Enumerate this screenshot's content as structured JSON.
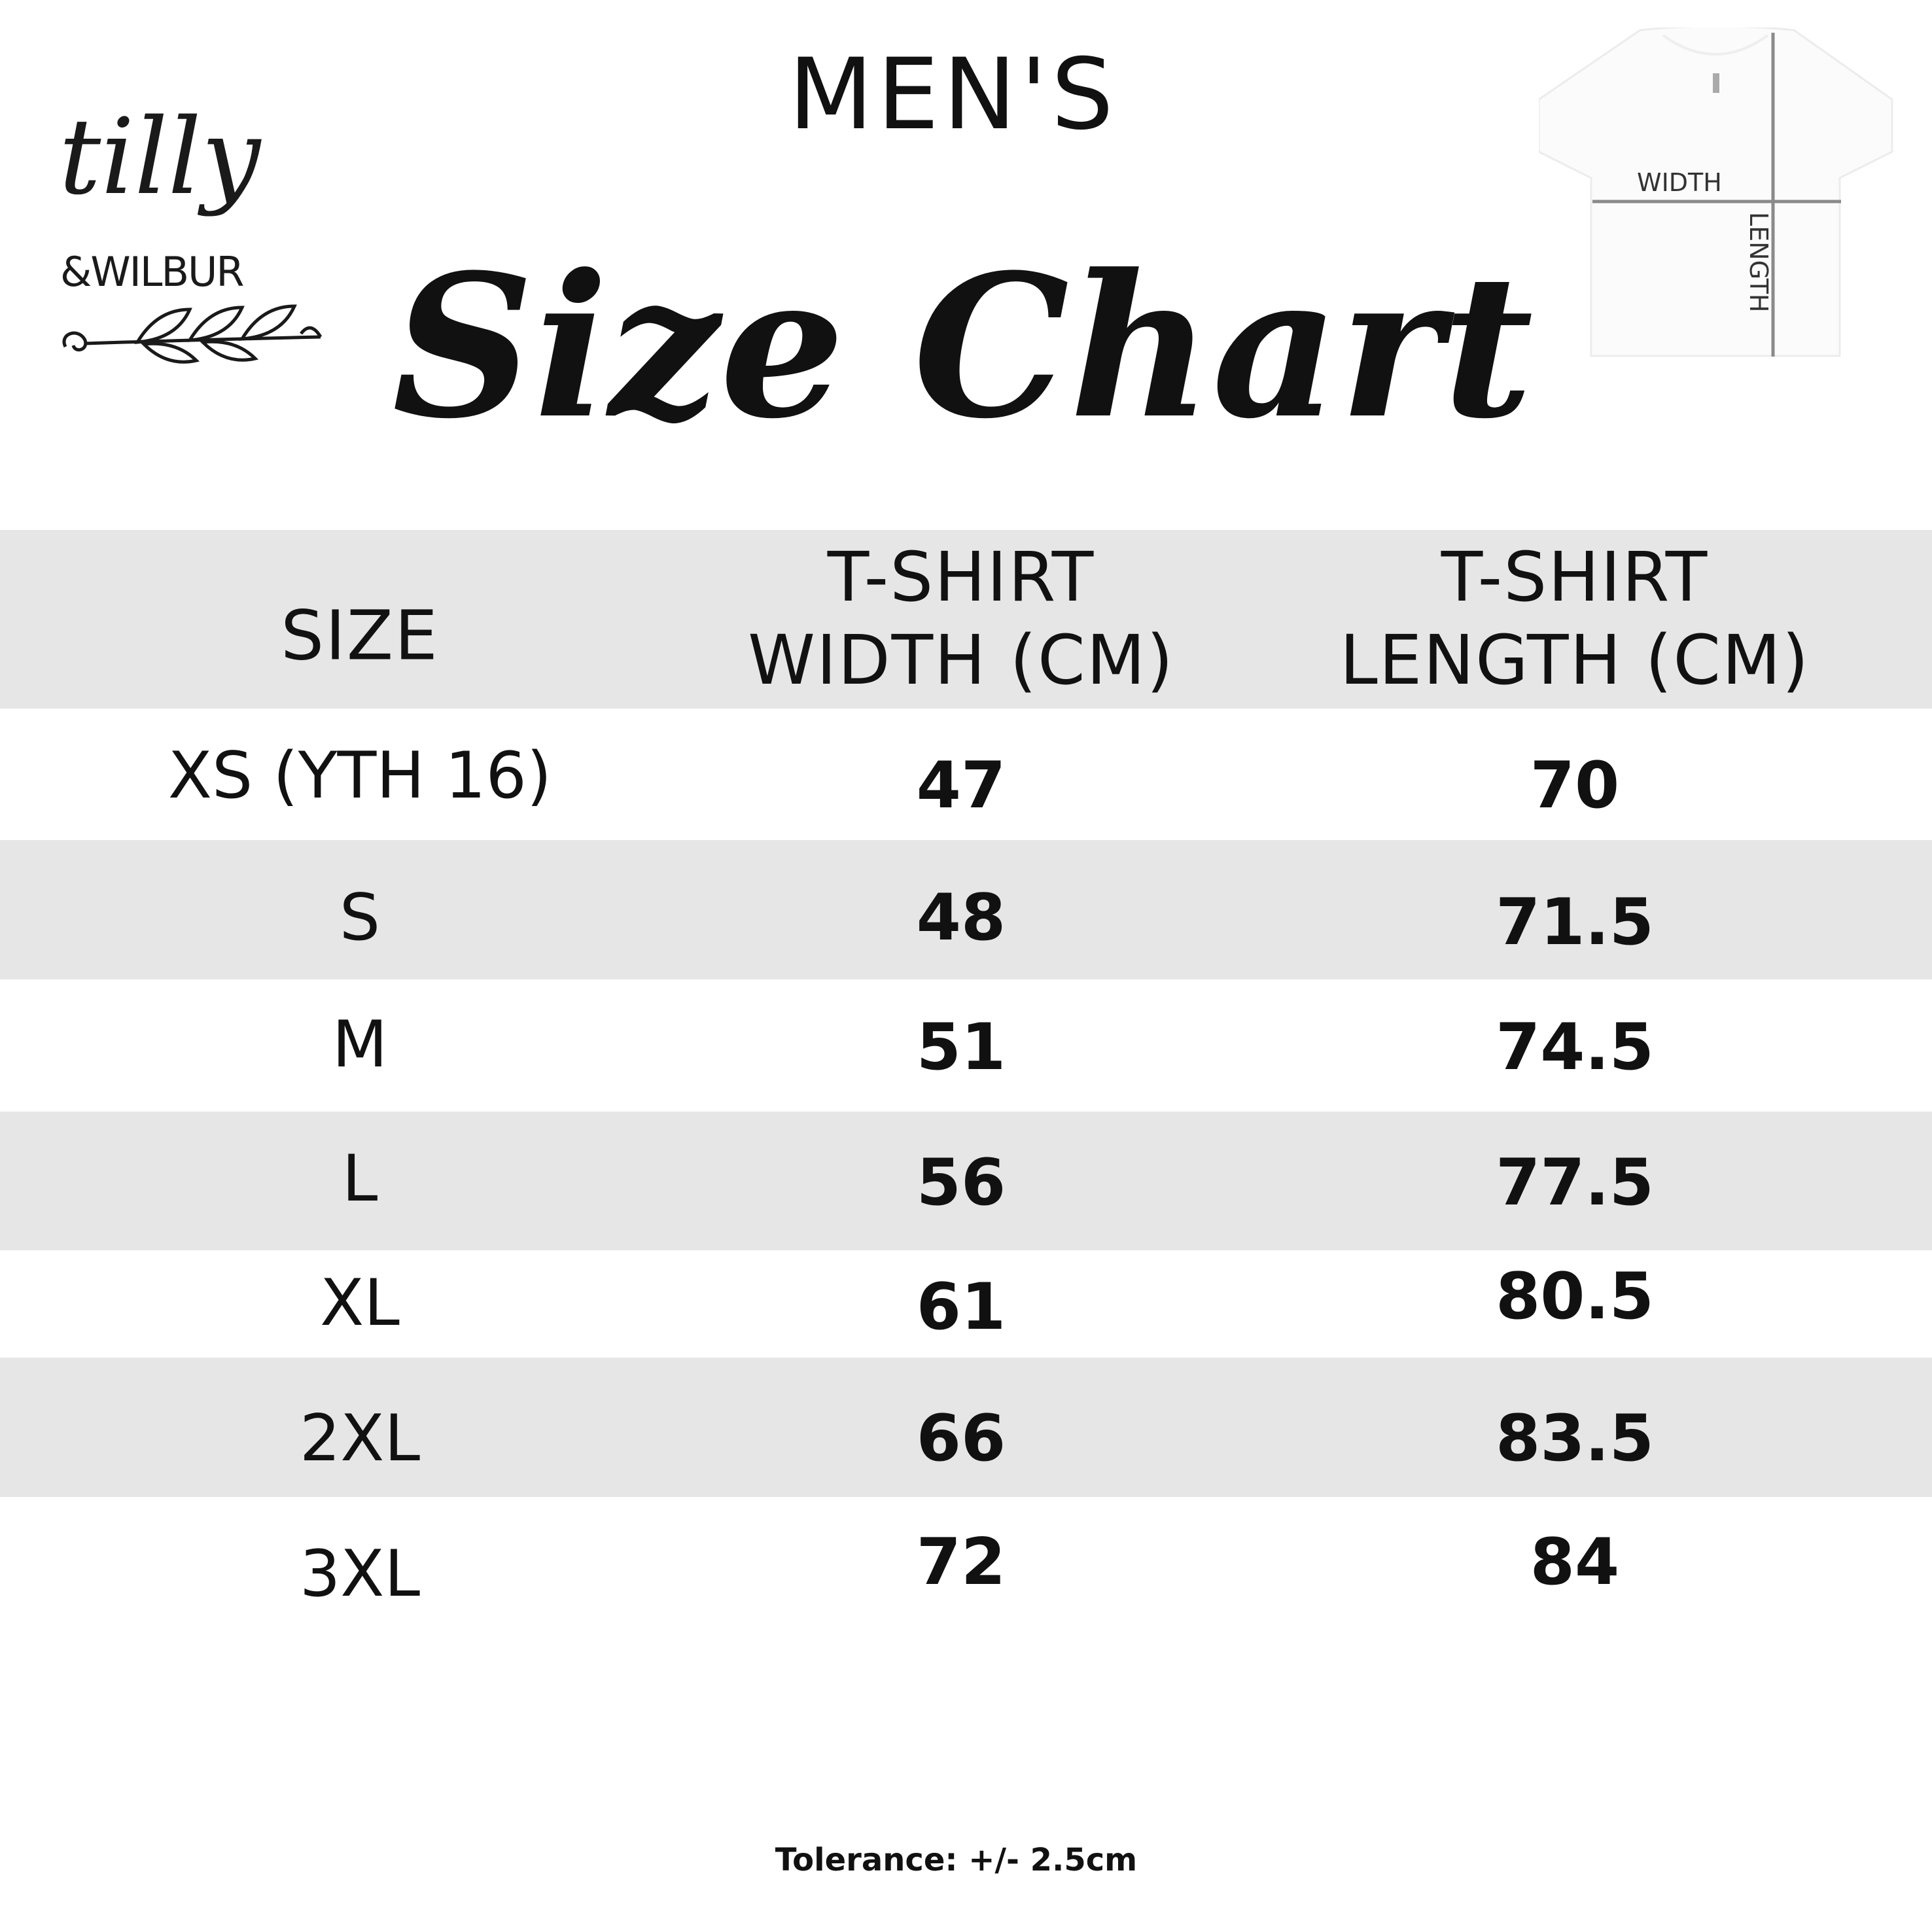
{
  "brand": {
    "line1": "tilly",
    "line2": "&WILBUR"
  },
  "header": {
    "subtitle": "MEN'S",
    "title": "Size Chart"
  },
  "diagram": {
    "width_label": "WIDTH",
    "length_label": "LENGTH"
  },
  "table": {
    "columns": [
      "SIZE",
      "T-SHIRT\nWIDTH (CM)",
      "T-SHIRT\nLENGTH (CM)"
    ],
    "rows": [
      [
        "XS (YTH 16)",
        "47",
        "70"
      ],
      [
        "S",
        "48",
        "71.5"
      ],
      [
        "M",
        "51",
        "74.5"
      ],
      [
        "L",
        "56",
        "77.5"
      ],
      [
        "XL",
        "61",
        "80.5"
      ],
      [
        "2XL",
        "66",
        "83.5"
      ],
      [
        "3XL",
        "72",
        "84"
      ]
    ]
  },
  "footer": {
    "tolerance": "Tolerance: +/- 2.5cm"
  },
  "colors": {
    "band": "#e6e6e6",
    "text": "#111111",
    "measure_line": "#8a8a8a"
  }
}
